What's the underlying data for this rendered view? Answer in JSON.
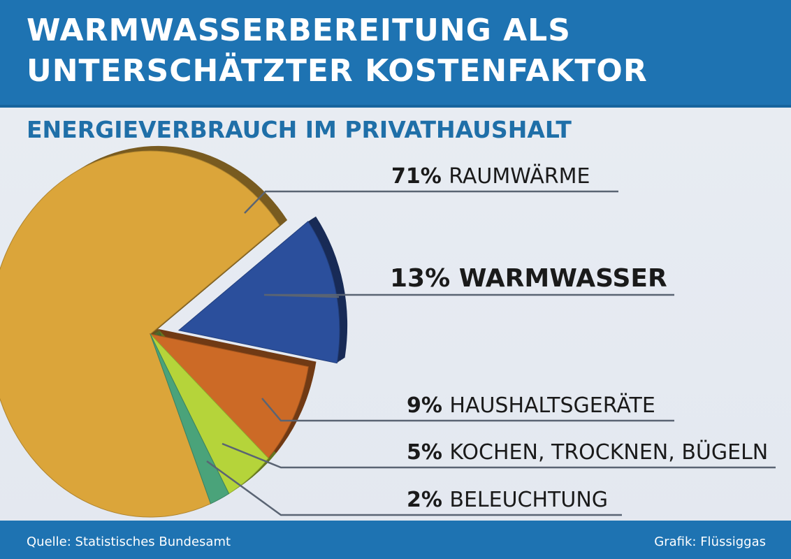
{
  "title_lines": [
    "WARMWASSERBEREITUNG ALS",
    "UNTERSCHÄTZTER KOSTENFAKTOR"
  ],
  "subtitle": "ENERGIEVERBRAUCH IM PRIVATHAUSHALT",
  "source": "Quelle: Statistisches Bundesamt",
  "credit": "Grafik: Flüssiggas",
  "colors": {
    "header": "#1e73b2",
    "raumwaerme": "#dba53a",
    "warmwasser": "#2b4f9c",
    "haushaltsgeraete": "#cc6a26",
    "kochen": "#b5d43a",
    "beleuchtung": "#4aa37a"
  },
  "chart_data": {
    "type": "pie",
    "title": "ENERGIEVERBRAUCH IM PRIVATHAUSHALT",
    "exploded_slice": "WARMWASSER",
    "slices": [
      {
        "label": "RAUMWÄRME",
        "value": 71,
        "percent_text": "71%",
        "color": "#dba53a"
      },
      {
        "label": "WARMWASSER",
        "value": 13,
        "percent_text": "13%",
        "color": "#2b4f9c"
      },
      {
        "label": "HAUSHALTSGERÄTE",
        "value": 9,
        "percent_text": "9%",
        "color": "#cc6a26"
      },
      {
        "label": "KOCHEN, TROCKNEN, BÜGELN",
        "value": 5,
        "percent_text": "5%",
        "color": "#b5d43a"
      },
      {
        "label": "BELEUCHTUNG",
        "value": 2,
        "percent_text": "2%",
        "color": "#4aa37a"
      }
    ]
  }
}
